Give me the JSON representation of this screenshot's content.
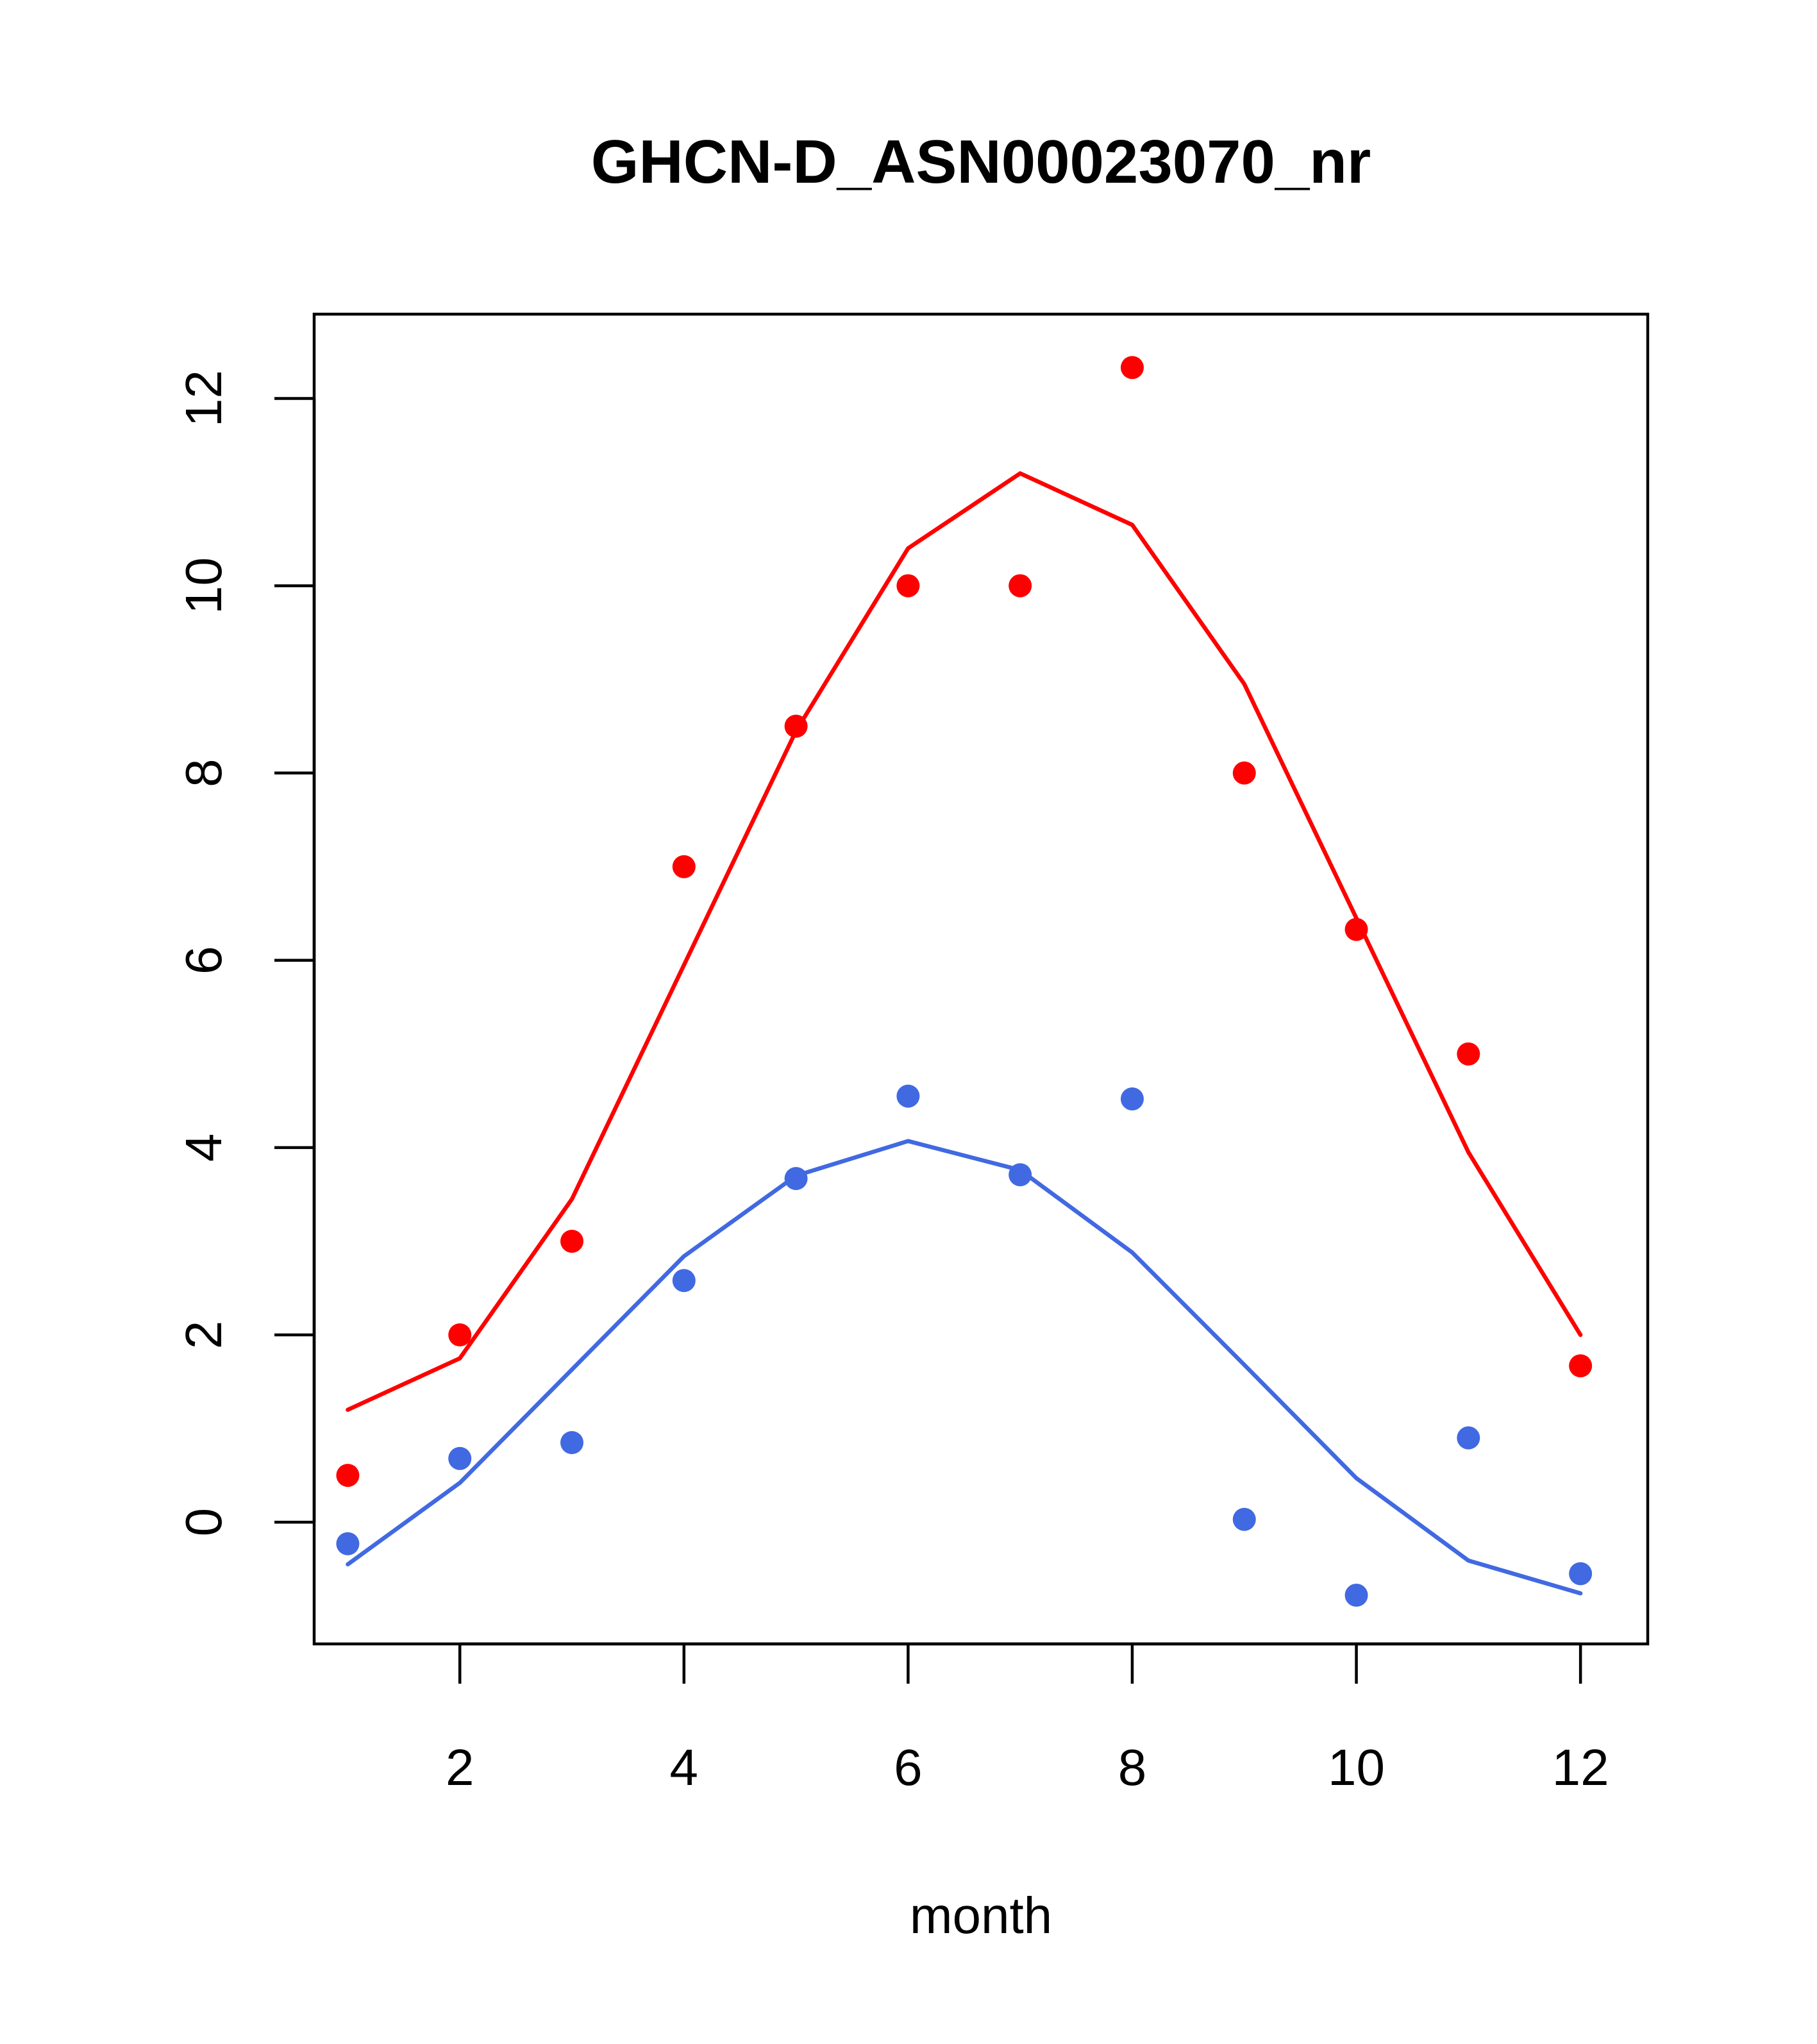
{
  "chart_data": {
    "type": "scatter",
    "title": "GHCN-D_ASN00023070_nr",
    "xlabel": "month",
    "ylabel": "",
    "xlim": [
      0.7,
      12.6
    ],
    "ylim": [
      -1.3,
      12.9
    ],
    "x_ticks": [
      2,
      4,
      6,
      8,
      10,
      12
    ],
    "y_ticks": [
      0,
      2,
      4,
      6,
      8,
      10,
      12
    ],
    "grid": false,
    "legend": "none",
    "x": [
      1,
      2,
      3,
      4,
      5,
      6,
      7,
      8,
      9,
      10,
      11,
      12
    ],
    "series": [
      {
        "color": "#FF0000",
        "points": [
          0.5,
          2.0,
          3.0,
          7.0,
          8.5,
          10.0,
          10.0,
          12.33,
          8.0,
          6.33,
          5.0,
          1.67
        ],
        "line": [
          1.2,
          1.75,
          3.45,
          5.95,
          8.45,
          10.4,
          11.2,
          10.65,
          8.95,
          6.45,
          3.95,
          2.0
        ]
      },
      {
        "color": "#4169E1",
        "points": [
          -0.23,
          0.68,
          0.85,
          2.58,
          3.67,
          4.55,
          3.71,
          4.52,
          0.03,
          -0.78,
          0.9,
          -0.55
        ],
        "line": [
          -0.45,
          0.42,
          1.63,
          2.84,
          3.7,
          4.07,
          3.76,
          2.88,
          1.68,
          0.47,
          -0.41,
          -0.76
        ]
      }
    ]
  }
}
